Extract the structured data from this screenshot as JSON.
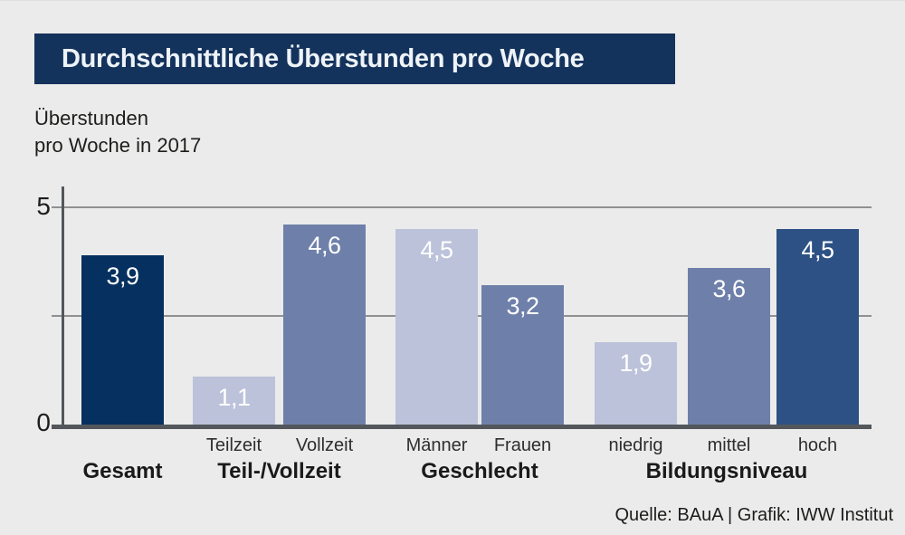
{
  "page": {
    "background_color": "#ebebeb"
  },
  "header": {
    "title": "Durchschnittliche Überstunden pro Woche",
    "bar_color": "#14335c",
    "text_color": "#eef3f8"
  },
  "subtitle": {
    "line1": "Überstunden",
    "line2": "pro Woche in 2017"
  },
  "axis": {
    "tick_top": "5",
    "tick_bottom": "0"
  },
  "footer": {
    "source": "Quelle: BAuA | Grafik: IWW Institut"
  },
  "colors": {
    "bar_dark_navy": "#06305f",
    "bar_light": "#bcc2da",
    "bar_medium": "#6e80aa",
    "bar_navy": "#2d5184",
    "axis": "#53575c",
    "gridline": "#8f9092"
  },
  "chart_data": {
    "type": "bar",
    "title": "Durchschnittliche Überstunden pro Woche",
    "ylabel": "Überstunden pro Woche in 2017",
    "xlabel": "",
    "ylim": [
      0,
      5
    ],
    "yticks": [
      0,
      5
    ],
    "gridlines_at": [
      2.5,
      5
    ],
    "grid": true,
    "legend": false,
    "decimal_separator": ",",
    "groups": [
      {
        "label": "Gesamt",
        "bars": [
          {
            "category": "",
            "value": 3.9,
            "display": "3,9",
            "color": "#06305f"
          }
        ]
      },
      {
        "label": "Teil-/Vollzeit",
        "bars": [
          {
            "category": "Teilzeit",
            "value": 1.1,
            "display": "1,1",
            "color": "#bcc2da"
          },
          {
            "category": "Vollzeit",
            "value": 4.6,
            "display": "4,6",
            "color": "#6e80aa"
          }
        ]
      },
      {
        "label": "Geschlecht",
        "bars": [
          {
            "category": "Männer",
            "value": 4.5,
            "display": "4,5",
            "color": "#bcc2da"
          },
          {
            "category": "Frauen",
            "value": 3.2,
            "display": "3,2",
            "color": "#6e80aa"
          }
        ]
      },
      {
        "label": "Bildungsniveau",
        "bars": [
          {
            "category": "niedrig",
            "value": 1.9,
            "display": "1,9",
            "color": "#bcc2da"
          },
          {
            "category": "mittel",
            "value": 3.6,
            "display": "3,6",
            "color": "#6e80aa"
          },
          {
            "category": "hoch",
            "value": 4.5,
            "display": "4,5",
            "color": "#2d5184"
          }
        ]
      }
    ]
  }
}
